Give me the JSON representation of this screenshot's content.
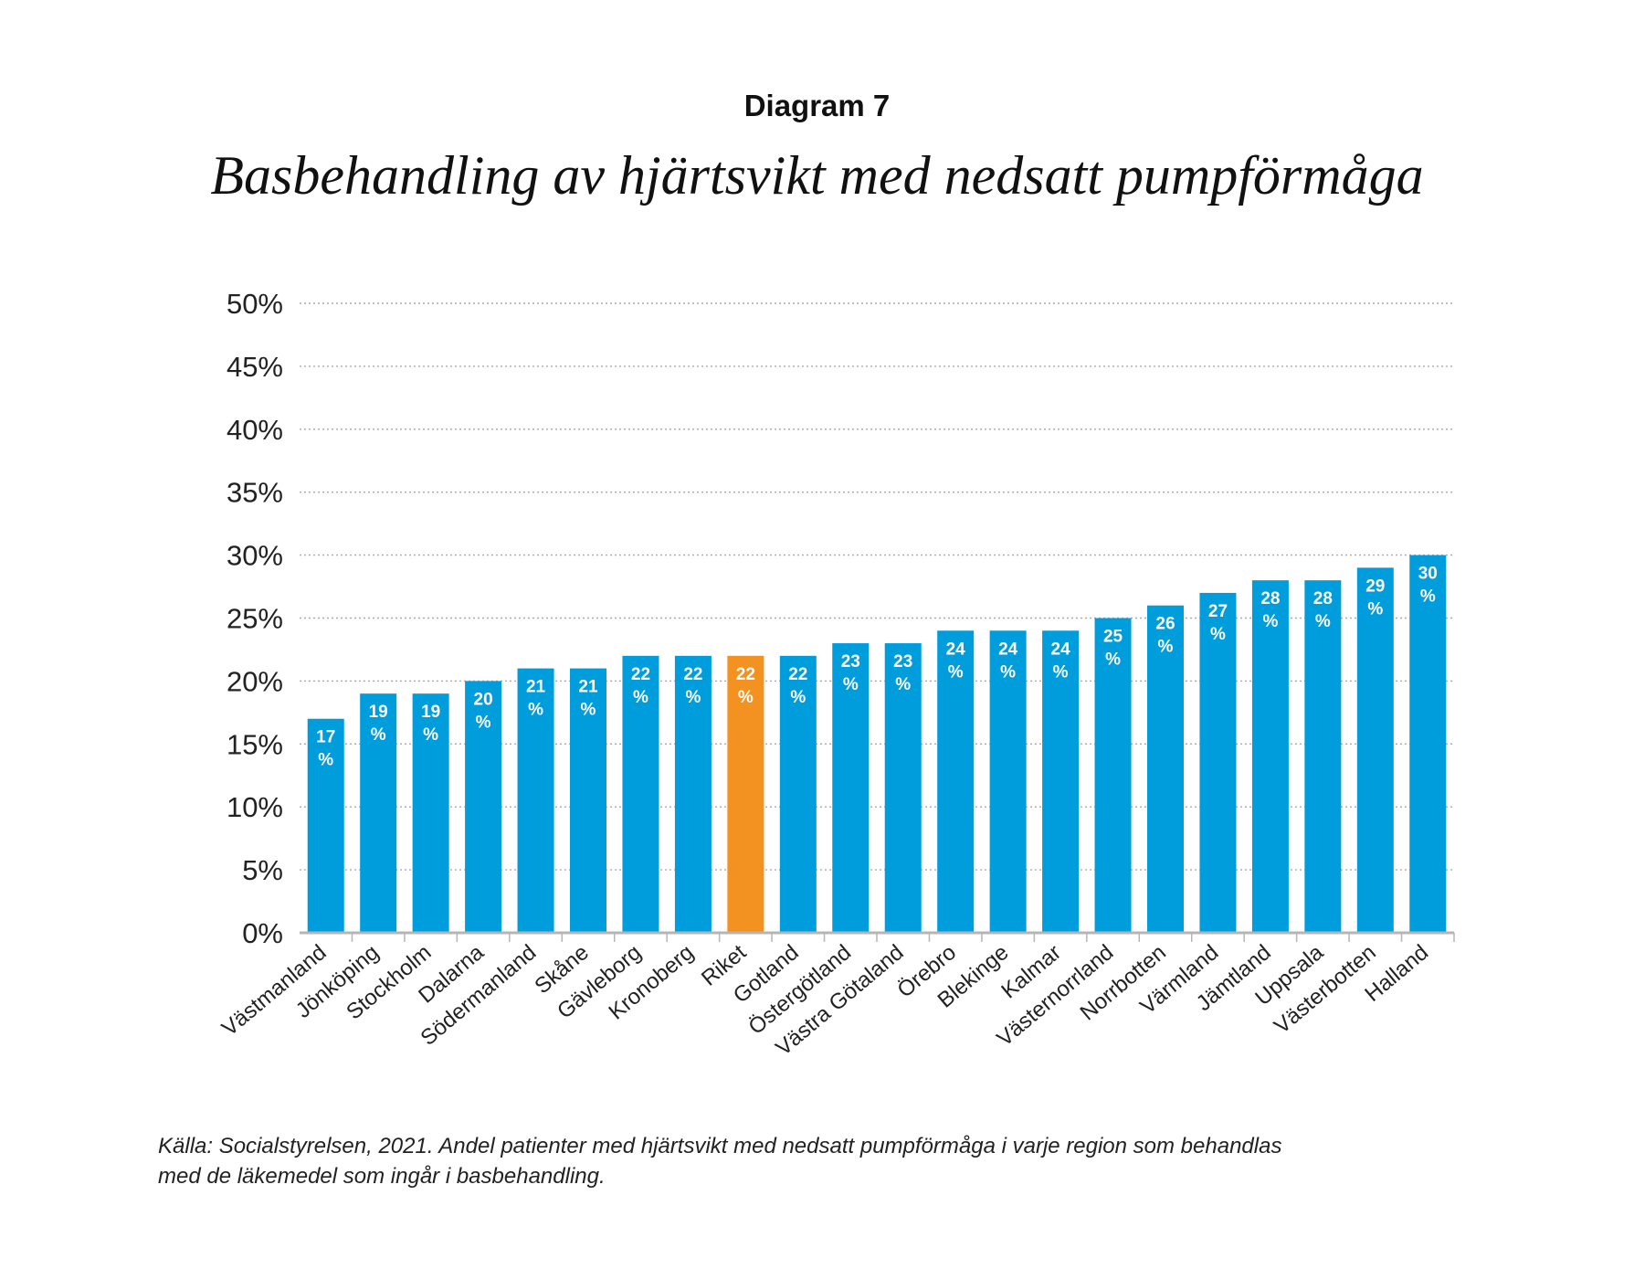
{
  "header": {
    "kicker": "Diagram 7",
    "title": "Basbehandling av hjärtsvikt med nedsatt pumpförmåga"
  },
  "footer": {
    "source_line1": "Källa: Socialstyrelsen, 2021. Andel patienter med hjärtsvikt med nedsatt pumpförmåga i varje region som behandlas",
    "source_line2": "med de läkemedel som ingår i basbehandling."
  },
  "colors": {
    "bar": "#009ddc",
    "highlight": "#f39220",
    "grid": "#aaaaaa",
    "axis": "#b5b5b5"
  },
  "chart_data": {
    "type": "bar",
    "title": "Basbehandling av hjärtsvikt med nedsatt pumpförmåga",
    "xlabel": "",
    "ylabel": "",
    "ylim": [
      0,
      50
    ],
    "yticks": [
      0,
      5,
      10,
      15,
      20,
      25,
      30,
      35,
      40,
      45,
      50
    ],
    "ytick_suffix": "%",
    "grid": true,
    "value_label_unit": "%",
    "highlight_category": "Riket",
    "categories": [
      "Västmanland",
      "Jönköping",
      "Stockholm",
      "Dalarna",
      "Södermanland",
      "Skåne",
      "Gävleborg",
      "Kronoberg",
      "Riket",
      "Gotland",
      "Östergötland",
      "Västra Götaland",
      "Örebro",
      "Blekinge",
      "Kalmar",
      "Västernorrland",
      "Norrbotten",
      "Värmland",
      "Jämtland",
      "Uppsala",
      "Västerbotten",
      "Halland"
    ],
    "values": [
      17,
      19,
      19,
      20,
      21,
      21,
      22,
      22,
      22,
      22,
      23,
      23,
      24,
      24,
      24,
      25,
      26,
      27,
      28,
      28,
      29,
      30
    ]
  }
}
